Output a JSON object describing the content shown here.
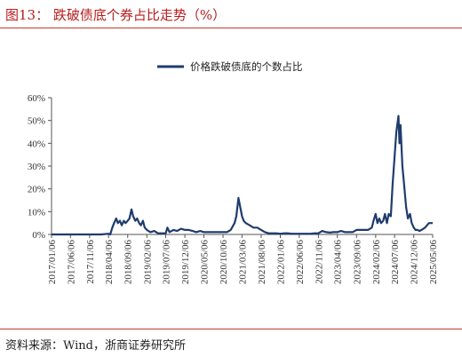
{
  "header": {
    "title": "图13：  跌破债底个券占比走势（%）"
  },
  "footer": {
    "source": "资料来源：Wind，浙商证券研究所"
  },
  "colors": {
    "accent_red": "#c0392b",
    "series_blue": "#1f3c6e"
  },
  "chart_data": {
    "type": "line",
    "title": "",
    "xlabel": "",
    "ylabel": "",
    "ylim": [
      0,
      60
    ],
    "yticks": [
      "0%",
      "10%",
      "20%",
      "30%",
      "40%",
      "50%",
      "60%"
    ],
    "x_ticks": [
      "2017/01/06",
      "2017/06/06",
      "2017/11/06",
      "2018/04/06",
      "2018/09/06",
      "2019/02/06",
      "2019/07/06",
      "2019/12/06",
      "2020/05/06",
      "2020/10/06",
      "2021/03/06",
      "2021/08/06",
      "2022/01/06",
      "2022/06/06",
      "2022/11/06",
      "2023/04/06",
      "2023/09/06",
      "2024/02/06",
      "2024/07/06",
      "2024/12/06",
      "2025/05/06"
    ],
    "grid": false,
    "legend_position": "top-center",
    "series": [
      {
        "name": "价格跌破债底的个数占比",
        "color": "#1f3c6e",
        "points": [
          [
            "2017/01/06",
            0
          ],
          [
            "2017/06/06",
            0
          ],
          [
            "2017/11/06",
            0
          ],
          [
            "2018/02/06",
            0
          ],
          [
            "2018/04/06",
            0.3
          ],
          [
            "2018/04/20",
            0
          ],
          [
            "2018/05/06",
            3
          ],
          [
            "2018/05/20",
            5
          ],
          [
            "2018/06/06",
            7
          ],
          [
            "2018/06/20",
            5
          ],
          [
            "2018/07/06",
            6
          ],
          [
            "2018/07/20",
            4
          ],
          [
            "2018/08/06",
            6
          ],
          [
            "2018/08/20",
            5
          ],
          [
            "2018/09/06",
            6
          ],
          [
            "2018/09/20",
            7
          ],
          [
            "2018/10/06",
            11
          ],
          [
            "2018/10/20",
            8
          ],
          [
            "2018/11/06",
            6
          ],
          [
            "2018/11/20",
            7
          ],
          [
            "2018/12/06",
            5
          ],
          [
            "2018/12/20",
            4
          ],
          [
            "2019/01/06",
            6
          ],
          [
            "2019/01/20",
            3
          ],
          [
            "2019/02/06",
            2
          ],
          [
            "2019/03/06",
            1
          ],
          [
            "2019/04/06",
            1.5
          ],
          [
            "2019/05/06",
            0.5
          ],
          [
            "2019/06/06",
            0.5
          ],
          [
            "2019/07/06",
            0.5
          ],
          [
            "2019/07/20",
            3
          ],
          [
            "2019/08/06",
            1
          ],
          [
            "2019/09/06",
            2
          ],
          [
            "2019/10/06",
            1.5
          ],
          [
            "2019/11/06",
            2.5
          ],
          [
            "2019/12/06",
            2
          ],
          [
            "2020/01/06",
            2
          ],
          [
            "2020/02/06",
            1.5
          ],
          [
            "2020/03/06",
            1
          ],
          [
            "2020/04/06",
            1.5
          ],
          [
            "2020/05/06",
            1
          ],
          [
            "2020/06/06",
            1
          ],
          [
            "2020/07/06",
            1
          ],
          [
            "2020/08/06",
            1
          ],
          [
            "2020/09/06",
            1
          ],
          [
            "2020/10/06",
            1
          ],
          [
            "2020/11/06",
            1
          ],
          [
            "2020/12/06",
            2
          ],
          [
            "2021/01/06",
            5
          ],
          [
            "2021/01/20",
            8
          ],
          [
            "2021/02/06",
            16
          ],
          [
            "2021/02/20",
            12
          ],
          [
            "2021/03/06",
            8
          ],
          [
            "2021/03/20",
            6
          ],
          [
            "2021/04/06",
            5
          ],
          [
            "2021/05/06",
            4
          ],
          [
            "2021/06/06",
            3
          ],
          [
            "2021/07/06",
            3
          ],
          [
            "2021/08/06",
            2
          ],
          [
            "2021/09/06",
            1
          ],
          [
            "2021/10/06",
            0.5
          ],
          [
            "2021/11/06",
            0.5
          ],
          [
            "2021/12/06",
            0.5
          ],
          [
            "2022/01/06",
            0.3
          ],
          [
            "2022/02/06",
            0.5
          ],
          [
            "2022/03/06",
            0.5
          ],
          [
            "2022/04/06",
            0.3
          ],
          [
            "2022/05/06",
            0.3
          ],
          [
            "2022/06/06",
            0.3
          ],
          [
            "2022/07/06",
            0.3
          ],
          [
            "2022/08/06",
            0.3
          ],
          [
            "2022/09/06",
            0.3
          ],
          [
            "2022/10/06",
            0.5
          ],
          [
            "2022/11/06",
            0.5
          ],
          [
            "2022/12/06",
            1.5
          ],
          [
            "2023/01/06",
            1
          ],
          [
            "2023/02/06",
            0.8
          ],
          [
            "2023/03/06",
            1
          ],
          [
            "2023/04/06",
            1
          ],
          [
            "2023/05/06",
            1.5
          ],
          [
            "2023/06/06",
            1
          ],
          [
            "2023/07/06",
            1
          ],
          [
            "2023/08/06",
            1
          ],
          [
            "2023/09/06",
            2
          ],
          [
            "2023/10/06",
            2
          ],
          [
            "2023/11/06",
            2
          ],
          [
            "2023/12/06",
            2
          ],
          [
            "2024/01/06",
            3
          ],
          [
            "2024/01/20",
            6
          ],
          [
            "2024/02/06",
            9
          ],
          [
            "2024/02/20",
            5
          ],
          [
            "2024/03/06",
            7
          ],
          [
            "2024/03/20",
            5
          ],
          [
            "2024/04/06",
            6
          ],
          [
            "2024/04/20",
            9
          ],
          [
            "2024/05/06",
            5
          ],
          [
            "2024/05/20",
            9
          ],
          [
            "2024/06/06",
            8
          ],
          [
            "2024/06/20",
            22
          ],
          [
            "2024/07/06",
            34
          ],
          [
            "2024/07/20",
            45
          ],
          [
            "2024/08/06",
            52
          ],
          [
            "2024/08/14",
            40
          ],
          [
            "2024/08/22",
            48
          ],
          [
            "2024/09/06",
            30
          ],
          [
            "2024/09/20",
            22
          ],
          [
            "2024/10/06",
            12
          ],
          [
            "2024/10/20",
            7
          ],
          [
            "2024/11/06",
            9
          ],
          [
            "2024/11/20",
            5
          ],
          [
            "2024/12/06",
            3
          ],
          [
            "2024/12/20",
            2
          ],
          [
            "2025/01/06",
            2
          ],
          [
            "2025/01/20",
            1.5
          ],
          [
            "2025/02/06",
            2
          ],
          [
            "2025/03/06",
            3
          ],
          [
            "2025/04/06",
            5
          ],
          [
            "2025/05/06",
            5
          ]
        ]
      }
    ]
  }
}
